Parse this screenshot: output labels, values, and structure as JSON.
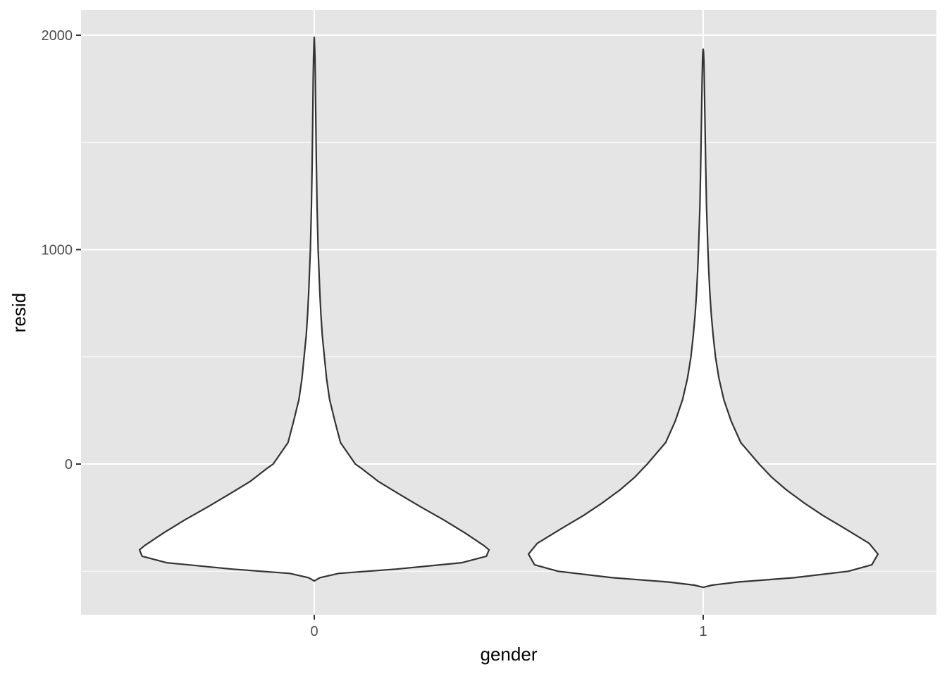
{
  "chart_data": {
    "type": "violin",
    "title": "",
    "xlabel": "gender",
    "ylabel": "resid",
    "categories": [
      "0",
      "1"
    ],
    "ylim": [
      -700,
      2120
    ],
    "yticks": [
      0,
      1000,
      2000
    ],
    "yticks_minor": [
      -500,
      500,
      1500
    ],
    "grid": true,
    "theme": {
      "panel_background": "#E5E5E5",
      "grid_color": "#FFFFFF",
      "violin_fill": "#FFFFFF",
      "violin_stroke": "#333333"
    },
    "violins": [
      {
        "category": "0",
        "min": -545,
        "max": 1990,
        "profile": [
          [
            -545,
            0.0
          ],
          [
            -530,
            0.032
          ],
          [
            -510,
            0.14
          ],
          [
            -490,
            0.47
          ],
          [
            -460,
            0.845
          ],
          [
            -430,
            0.985
          ],
          [
            -400,
            1.0
          ],
          [
            -380,
            0.97
          ],
          [
            -320,
            0.86
          ],
          [
            -260,
            0.74
          ],
          [
            -200,
            0.61
          ],
          [
            -140,
            0.485
          ],
          [
            -80,
            0.365
          ],
          [
            -20,
            0.27
          ],
          [
            0,
            0.235
          ],
          [
            100,
            0.15
          ],
          [
            200,
            0.118
          ],
          [
            300,
            0.088
          ],
          [
            400,
            0.07
          ],
          [
            500,
            0.058
          ],
          [
            600,
            0.046
          ],
          [
            700,
            0.038
          ],
          [
            800,
            0.032
          ],
          [
            900,
            0.027
          ],
          [
            1000,
            0.022
          ],
          [
            1200,
            0.016
          ],
          [
            1400,
            0.012
          ],
          [
            1600,
            0.009
          ],
          [
            1800,
            0.006
          ],
          [
            1900,
            0.004
          ],
          [
            1950,
            0.002
          ],
          [
            1990,
            0.0
          ]
        ]
      },
      {
        "category": "1",
        "min": -575,
        "max": 1935,
        "profile": [
          [
            -575,
            0.0
          ],
          [
            -565,
            0.05
          ],
          [
            -550,
            0.2
          ],
          [
            -530,
            0.52
          ],
          [
            -500,
            0.83
          ],
          [
            -470,
            0.965
          ],
          [
            -420,
            1.0
          ],
          [
            -370,
            0.95
          ],
          [
            -300,
            0.81
          ],
          [
            -240,
            0.685
          ],
          [
            -180,
            0.575
          ],
          [
            -120,
            0.475
          ],
          [
            -60,
            0.39
          ],
          [
            0,
            0.32
          ],
          [
            100,
            0.215
          ],
          [
            200,
            0.16
          ],
          [
            300,
            0.118
          ],
          [
            400,
            0.09
          ],
          [
            500,
            0.07
          ],
          [
            600,
            0.057
          ],
          [
            700,
            0.046
          ],
          [
            800,
            0.038
          ],
          [
            900,
            0.032
          ],
          [
            1000,
            0.027
          ],
          [
            1200,
            0.019
          ],
          [
            1400,
            0.014
          ],
          [
            1600,
            0.01
          ],
          [
            1800,
            0.006
          ],
          [
            1880,
            0.004
          ],
          [
            1920,
            0.002
          ],
          [
            1935,
            0.0
          ]
        ]
      }
    ]
  }
}
